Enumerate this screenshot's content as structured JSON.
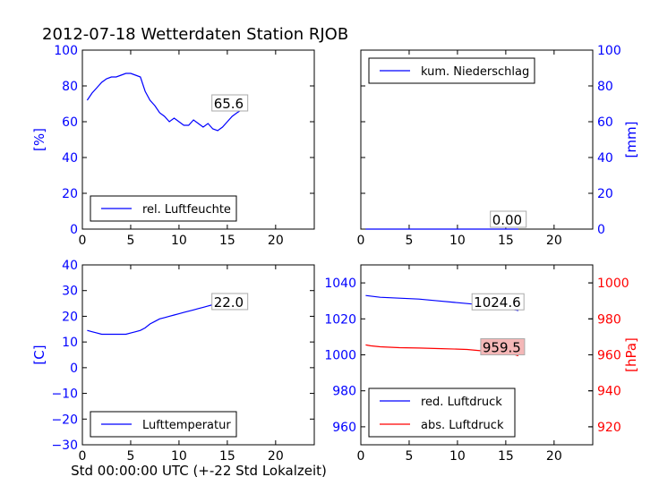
{
  "figure": {
    "title": "2012-07-18 Wetterdaten Station RJOB",
    "xlabel": "Std 00:00:00 UTC (+-22 Std Lokalzeit)"
  },
  "colors": {
    "blue": "#0000ff",
    "red": "#ff0000",
    "redbox": "#f4b7b7",
    "black": "#000000"
  },
  "chart_data": [
    {
      "id": "humidity",
      "type": "line",
      "title": "",
      "xlabel": "",
      "ylabel": "[%]",
      "ylabel_side": "left",
      "tick_side": "left",
      "xlim": [
        0,
        24
      ],
      "ylim": [
        0,
        100
      ],
      "xticks": [
        0,
        5,
        10,
        15,
        20
      ],
      "yticks": [
        0,
        20,
        40,
        60,
        80,
        100
      ],
      "legend_position": "lower-left",
      "grid": false,
      "series": [
        {
          "name": "rel. Luftfeuchte",
          "color": "#0000ff",
          "x": [
            0.5,
            1,
            1.5,
            2,
            2.5,
            3,
            3.5,
            4,
            4.5,
            5,
            5.5,
            6,
            6.5,
            7,
            7.5,
            8,
            8.5,
            9,
            9.5,
            10,
            10.5,
            11,
            11.5,
            12,
            12.5,
            13,
            13.5,
            14,
            14.5,
            15,
            15.5,
            16,
            16.3
          ],
          "y": [
            72,
            76,
            79,
            82,
            84,
            85,
            85,
            86,
            87,
            87,
            86,
            85,
            77,
            72,
            69,
            65,
            63,
            60,
            62,
            60,
            58,
            58,
            61,
            59,
            57,
            59,
            56,
            55,
            57,
            60,
            63,
            65,
            66
          ]
        }
      ],
      "annotation": {
        "text": "65.6",
        "x": 13.5,
        "y": 68,
        "style": "white"
      }
    },
    {
      "id": "precip",
      "type": "line",
      "title": "",
      "xlabel": "",
      "ylabel": "[mm]",
      "ylabel_side": "right",
      "tick_side": "right",
      "xlim": [
        0,
        24
      ],
      "ylim": [
        0,
        100
      ],
      "xticks": [
        0,
        5,
        10,
        15,
        20
      ],
      "yticks": [
        0,
        20,
        40,
        60,
        80,
        100
      ],
      "legend_position": "upper-left",
      "grid": false,
      "series": [
        {
          "name": "kum. Niederschlag",
          "color": "#0000ff",
          "x": [
            0.5,
            16.3
          ],
          "y": [
            0,
            0
          ]
        }
      ],
      "annotation": {
        "text": "0.00",
        "x": 13.5,
        "y": 3,
        "style": "white"
      }
    },
    {
      "id": "temperature",
      "type": "line",
      "title": "",
      "xlabel": "",
      "ylabel": "[C]",
      "ylabel_side": "left",
      "tick_side": "left",
      "xlim": [
        0,
        24
      ],
      "ylim": [
        -30,
        40
      ],
      "xticks": [
        0,
        5,
        10,
        15,
        20
      ],
      "yticks": [
        -30,
        -20,
        -10,
        0,
        10,
        20,
        30,
        40
      ],
      "legend_position": "lower-left",
      "grid": false,
      "series": [
        {
          "name": "Lufttemperatur",
          "color": "#0000ff",
          "x": [
            0.5,
            1,
            1.5,
            2,
            2.5,
            3,
            3.5,
            4,
            4.5,
            5,
            5.5,
            6,
            6.5,
            7,
            7.5,
            8,
            8.5,
            9,
            9.5,
            10,
            10.5,
            11,
            11.5,
            12,
            12.5,
            13,
            13.5,
            14,
            14.5,
            15,
            15.5,
            16,
            16.3
          ],
          "y": [
            14.5,
            14,
            13.5,
            13,
            13,
            13,
            13,
            13,
            13,
            13.5,
            14,
            14.5,
            15.5,
            17,
            18,
            19,
            19.5,
            20,
            20.5,
            21,
            21.5,
            22,
            22.5,
            23,
            23.5,
            24,
            24.5,
            25,
            25,
            25.5,
            25.5,
            25.5,
            25.5
          ]
        }
      ],
      "annotation": {
        "text": "22.0",
        "x": 13.5,
        "y": 24,
        "style": "white"
      }
    },
    {
      "id": "pressure",
      "type": "line",
      "title": "",
      "xlabel": "",
      "ylabel": "[hPa]",
      "ylabel_side": "right",
      "tick_side": "both",
      "xlim": [
        0,
        24
      ],
      "ylim": [
        950,
        1050
      ],
      "yticks": [
        960,
        980,
        1000,
        1020,
        1040
      ],
      "ylim_right": [
        910,
        1010
      ],
      "yticks_right": [
        920,
        940,
        960,
        980,
        1000
      ],
      "xticks": [
        0,
        5,
        10,
        15,
        20
      ],
      "legend_position": "lower-left",
      "grid": false,
      "series": [
        {
          "name": "red. Luftdruck",
          "color": "#0000ff",
          "axis": "left",
          "x": [
            0.5,
            2,
            4,
            6,
            8,
            10,
            12,
            13,
            14,
            15,
            16,
            16.3
          ],
          "y": [
            1033,
            1032,
            1031.5,
            1031,
            1030,
            1029,
            1028,
            1027,
            1026.5,
            1026,
            1025,
            1024.6
          ]
        },
        {
          "name": "abs. Luftdruck",
          "color": "#ff0000",
          "axis": "right",
          "x": [
            0.5,
            1,
            2,
            4,
            6,
            8,
            10,
            11,
            12,
            13,
            14,
            15,
            16,
            16.3
          ],
          "y": [
            965.5,
            965,
            964.5,
            964,
            963.8,
            963.5,
            963.2,
            963,
            962.5,
            962,
            961.5,
            961,
            960,
            959.5
          ]
        }
      ],
      "annotations": [
        {
          "text": "1024.6",
          "x": 11.6,
          "y": 1027,
          "axis": "left",
          "style": "white"
        },
        {
          "text": "959.5",
          "x": 12.5,
          "y": 962,
          "axis": "right",
          "style": "red"
        }
      ]
    }
  ]
}
